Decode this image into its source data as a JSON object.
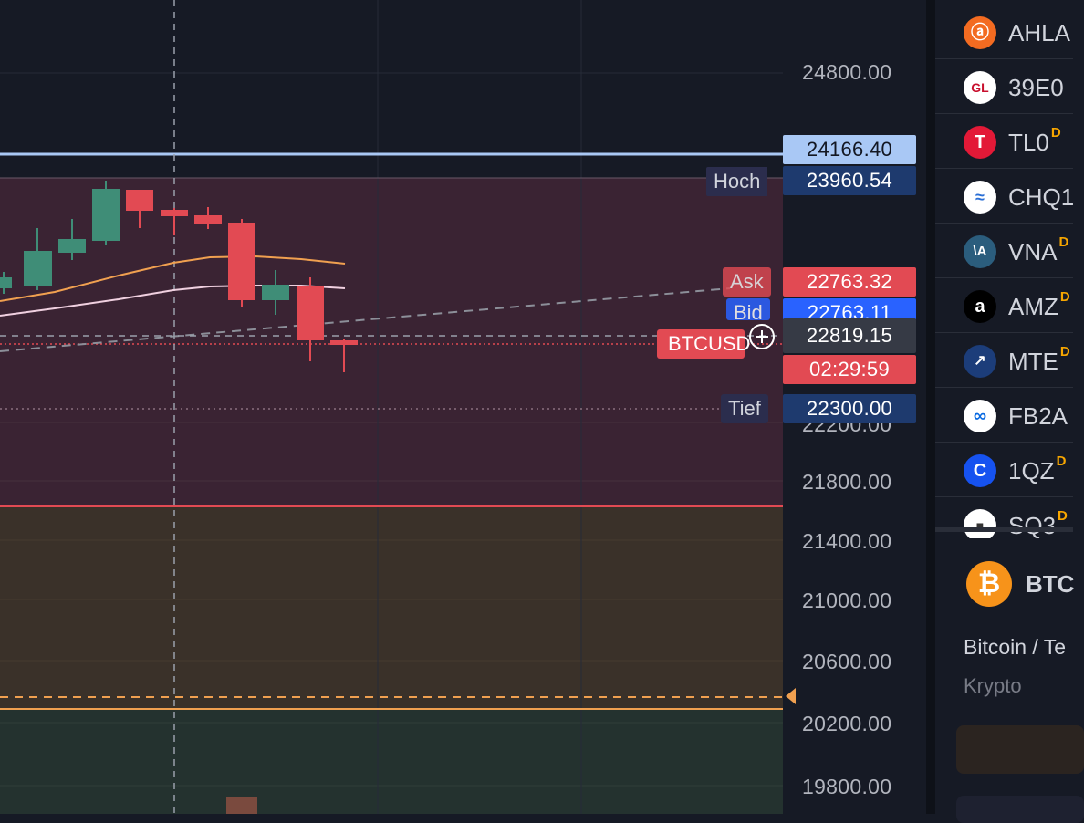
{
  "price_axis": {
    "ticks": [
      "24800.00",
      "22200.00",
      "21800.00",
      "21400.00",
      "21000.00",
      "20600.00",
      "20200.00",
      "19800.00"
    ]
  },
  "tags": {
    "marker_price": "24166.40",
    "high_label": "Hoch",
    "high_price": "23960.54",
    "ask_label": "Ask",
    "ask_price": "22763.32",
    "bid_label": "Bid",
    "bid_price": "22763.11",
    "symbol_label": "BTCUSD",
    "last_price": "22819.15",
    "countdown": "02:29:59",
    "low_label": "Tief",
    "low_price": "22300.00",
    "crosshair_price": "22819.15"
  },
  "watchlist": [
    {
      "symbol": "AHLA",
      "icon": "alibaba-icon",
      "color": "#f36b21",
      "flag": ""
    },
    {
      "symbol": "39E0",
      "icon": "gl-logo-icon",
      "color": "#ffffff",
      "flag": ""
    },
    {
      "symbol": "TL0",
      "icon": "tesla-icon",
      "color": "#e31937",
      "flag": "D"
    },
    {
      "symbol": "CHQ1",
      "icon": "wave-logo-icon",
      "color": "#ffffff",
      "flag": ""
    },
    {
      "symbol": "VNA",
      "icon": "vna-logo-icon",
      "color": "#2b5d7d",
      "flag": "D"
    },
    {
      "symbol": "AMZ",
      "icon": "amazon-icon",
      "color": "#000000",
      "flag": "D"
    },
    {
      "symbol": "MTE",
      "icon": "chart-logo-icon",
      "color": "#1c3d7a",
      "flag": "D"
    },
    {
      "symbol": "FB2A",
      "icon": "meta-icon",
      "color": "#ffffff",
      "flag": ""
    },
    {
      "symbol": "1QZ",
      "icon": "coinbase-icon",
      "color": "#1652f0",
      "flag": "D"
    },
    {
      "symbol": "SQ3",
      "icon": "block-icon",
      "color": "#ffffff",
      "flag": "D"
    }
  ],
  "detail": {
    "symbol": "BTC",
    "name": "Bitcoin / Te",
    "category": "Krypto",
    "icon": "bitcoin-icon",
    "icon_color": "#f7931a"
  },
  "colors": {
    "up": "#3f8d77",
    "down": "#e24a53",
    "ma_orange": "#f0a050",
    "ma_pink": "#f0d0e0",
    "accent_orange": "#f7a600",
    "accent_blue": "#2962ff"
  }
}
